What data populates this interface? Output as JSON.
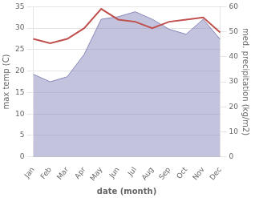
{
  "chart_data": {
    "type": "line",
    "categories": [
      "Jan",
      "Feb",
      "Mar",
      "Apr",
      "May",
      "Jun",
      "Jul",
      "Aug",
      "Sep",
      "Oct",
      "Nov",
      "Dec"
    ],
    "series": [
      {
        "type": "line",
        "color": "#c0504d",
        "values": [
          27.5,
          26.5,
          27.5,
          30.0,
          34.5,
          32.0,
          31.5,
          30.0,
          31.5,
          32.0,
          32.5,
          29.0
        ]
      },
      {
        "type": "area",
        "color": "#8888bb",
        "axis": "y2",
        "values": [
          33.0,
          30.0,
          32.0,
          41.0,
          55.0,
          56.0,
          58.0,
          55.0,
          51.0,
          49.0,
          55.0,
          47.0
        ]
      }
    ],
    "xlabel": "date (month)",
    "ylabel": "max temp (C)",
    "y2label": "med. precipitation (kg/m2)",
    "ylim": [
      0,
      35
    ],
    "yticks": [
      0,
      5,
      10,
      15,
      20,
      25,
      30,
      35
    ],
    "y2lim": [
      0,
      60
    ],
    "y2ticks": [
      0,
      10,
      20,
      30,
      40,
      50,
      60
    ],
    "grid": true
  }
}
